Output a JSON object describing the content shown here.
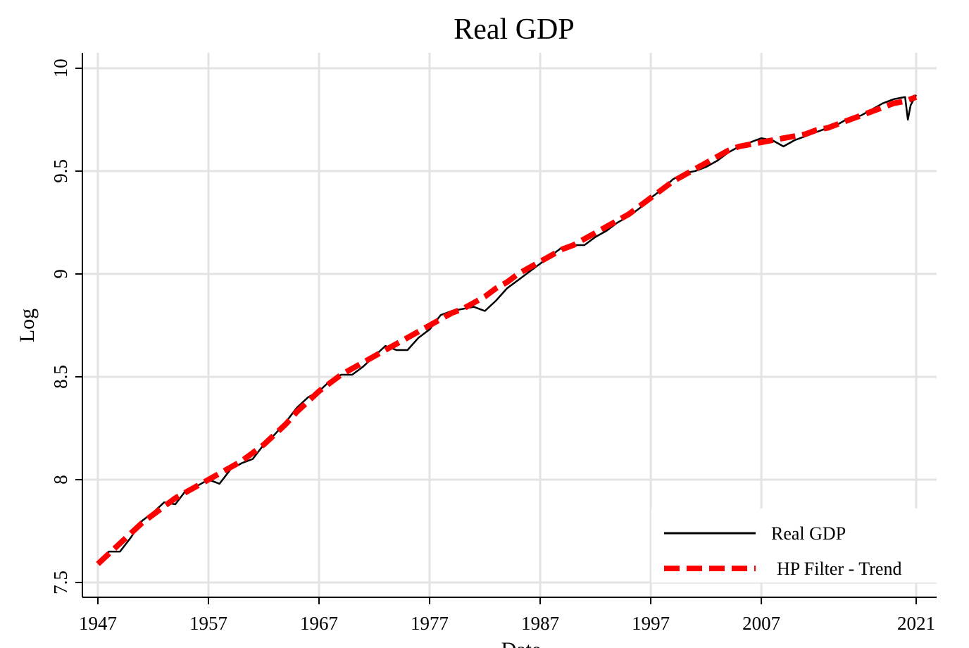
{
  "chart_data": {
    "type": "line",
    "title": "Real GDP",
    "xlabel": "Date",
    "ylabel": "Log",
    "x": [
      1947,
      1948,
      1949,
      1950,
      1951,
      1952,
      1953,
      1954,
      1955,
      1956,
      1957,
      1958,
      1959,
      1960,
      1961,
      1962,
      1963,
      1964,
      1965,
      1966,
      1967,
      1968,
      1969,
      1970,
      1971,
      1972,
      1973,
      1974,
      1975,
      1976,
      1977,
      1978,
      1979,
      1980,
      1981,
      1982,
      1983,
      1984,
      1985,
      1986,
      1987,
      1988,
      1989,
      1990,
      1991,
      1992,
      1993,
      1994,
      1995,
      1996,
      1997,
      1998,
      1999,
      2000,
      2001,
      2002,
      2003,
      2004,
      2005,
      2006,
      2007,
      2008,
      2009,
      2010,
      2011,
      2012,
      2013,
      2014,
      2015,
      2016,
      2017,
      2018,
      2019,
      2020,
      2020.25,
      2020.5,
      2021
    ],
    "series": [
      {
        "name": "Real GDP",
        "color": "#000000",
        "style": "solid",
        "values": [
          7.6,
          7.65,
          7.65,
          7.72,
          7.8,
          7.84,
          7.89,
          7.88,
          7.95,
          7.97,
          8.0,
          7.98,
          8.05,
          8.08,
          8.1,
          8.17,
          8.22,
          8.28,
          8.35,
          8.4,
          8.43,
          8.48,
          8.51,
          8.51,
          8.55,
          8.6,
          8.65,
          8.63,
          8.63,
          8.69,
          8.73,
          8.8,
          8.82,
          8.83,
          8.84,
          8.82,
          8.87,
          8.93,
          8.97,
          9.01,
          9.05,
          9.09,
          9.13,
          9.14,
          9.14,
          9.18,
          9.21,
          9.25,
          9.28,
          9.32,
          9.37,
          9.41,
          9.46,
          9.49,
          9.5,
          9.52,
          9.55,
          9.59,
          9.62,
          9.64,
          9.66,
          9.65,
          9.62,
          9.65,
          9.67,
          9.69,
          9.71,
          9.73,
          9.76,
          9.77,
          9.8,
          9.83,
          9.85,
          9.86,
          9.75,
          9.82,
          9.87
        ]
      },
      {
        "name": "HP Filter - Trend",
        "color": "#ff0000",
        "style": "dashed",
        "values": [
          7.59,
          7.64,
          7.69,
          7.74,
          7.79,
          7.83,
          7.87,
          7.91,
          7.94,
          7.97,
          8.0,
          8.03,
          8.06,
          8.09,
          8.13,
          8.17,
          8.22,
          8.27,
          8.33,
          8.38,
          8.43,
          8.47,
          8.51,
          8.54,
          8.57,
          8.6,
          8.63,
          8.66,
          8.69,
          8.72,
          8.75,
          8.78,
          8.81,
          8.83,
          8.86,
          8.89,
          8.93,
          8.96,
          9.0,
          9.03,
          9.06,
          9.09,
          9.12,
          9.14,
          9.17,
          9.2,
          9.23,
          9.26,
          9.29,
          9.33,
          9.37,
          9.41,
          9.45,
          9.48,
          9.51,
          9.54,
          9.57,
          9.6,
          9.62,
          9.63,
          9.64,
          9.65,
          9.66,
          9.67,
          9.68,
          9.7,
          9.71,
          9.73,
          9.75,
          9.77,
          9.79,
          9.81,
          9.83,
          9.84,
          9.845,
          9.85,
          9.86
        ]
      }
    ],
    "xlim": [
      1945.6,
      2022.85
    ],
    "xticks": [
      1947,
      1957,
      1967,
      1977,
      1987,
      1997,
      2007,
      2021
    ],
    "ylim": [
      7.428,
      10.075
    ],
    "yticks": [
      7.5,
      8,
      8.5,
      9,
      9.5,
      10
    ],
    "grid": true,
    "legend": "lower right"
  }
}
